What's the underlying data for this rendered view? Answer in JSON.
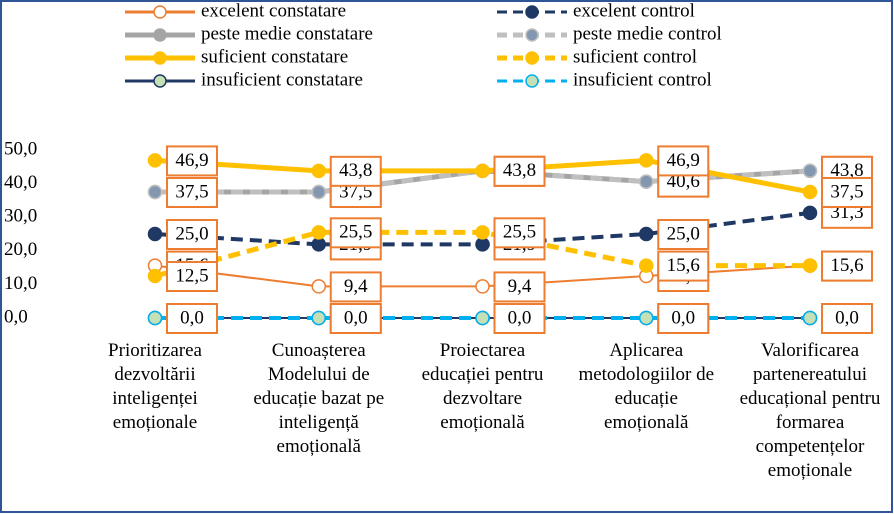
{
  "chart_data": {
    "type": "line",
    "categories": [
      "Prioritizarea dezvoltării inteligenței emoționale",
      "Cunoașterea Modelului de educație bazat pe inteligență emoțională",
      "Proiectarea educației pentru dezvoltare emoțională",
      "Aplicarea metodologiilor de educație emoțională",
      "Valorificarea partenereatului educațional pentru formarea competențelor emoționale"
    ],
    "series": [
      {
        "name": "excelent constatare",
        "color": "#ED7D31",
        "marker": "#FFFFFF",
        "dash": false,
        "values": [
          15.6,
          9.4,
          9.4,
          12.5,
          15.6
        ],
        "value_labels": [
          "15,6",
          "9,4",
          "9,4",
          "12,5",
          "15,6"
        ]
      },
      {
        "name": "excelent control",
        "color": "#1F3864",
        "marker": "#1F3864",
        "dash": true,
        "values": [
          25.0,
          21.9,
          21.9,
          25.0,
          31.3
        ],
        "value_labels": [
          "25,0",
          "21,9",
          "21,9",
          "25,0",
          "31,3"
        ]
      },
      {
        "name": "peste medie constatare",
        "color": "#A5A5A5",
        "marker": "#A5A5A5",
        "dash": false,
        "values": [
          37.5,
          37.5,
          43.8,
          40.6,
          43.8
        ],
        "value_labels": [
          "37,5",
          "37,5",
          "43,8",
          "40,6",
          "43,8"
        ]
      },
      {
        "name": "peste medie control",
        "color": "#BFBFBF",
        "marker": "#8497B0",
        "dash": true,
        "values": [
          37.5,
          37.5,
          43.8,
          40.6,
          43.8
        ],
        "value_labels": [
          "37,5",
          "37,5",
          "43,8",
          "40,6",
          "43,8"
        ]
      },
      {
        "name": "suficient constatare",
        "color": "#FFC000",
        "marker": "#FFC000",
        "dash": false,
        "values": [
          46.9,
          43.8,
          43.8,
          46.9,
          37.5
        ],
        "value_labels": [
          "46,9",
          "43,8",
          "43,8",
          "46,9",
          "37,5"
        ]
      },
      {
        "name": "suficient control",
        "color": "#FFC000",
        "marker": "#FFC000",
        "dash": true,
        "values": [
          12.5,
          25.5,
          25.5,
          15.6,
          15.6
        ],
        "value_labels": [
          "12,5",
          "25,5",
          "25,5",
          "15,6",
          "15,6"
        ]
      },
      {
        "name": "insuficient  constatare",
        "color": "#1F3864",
        "marker": "#C5E0B4",
        "dash": false,
        "values": [
          0.0,
          0.0,
          0.0,
          0.0,
          0.0
        ],
        "value_labels": [
          "0,0",
          "0,0",
          "0,0",
          "0,0",
          "0,0"
        ]
      },
      {
        "name": "insuficient  control",
        "color": "#00B0F0",
        "marker": "#C5E0B4",
        "dash": true,
        "values": [
          0.0,
          0.0,
          0.0,
          0.0,
          0.0
        ],
        "value_labels": [
          "0,0",
          "0,0",
          "0,0",
          "0,0",
          "0,0"
        ]
      }
    ],
    "ylim": [
      0,
      50
    ],
    "yticks": [
      {
        "value": 0,
        "label": "0,0"
      },
      {
        "value": 10,
        "label": "10,0"
      },
      {
        "value": 20,
        "label": "20,0"
      },
      {
        "value": 30,
        "label": "30,0"
      },
      {
        "value": 40,
        "label": "40,0"
      },
      {
        "value": 50,
        "label": "50,0"
      }
    ],
    "grid": false
  }
}
